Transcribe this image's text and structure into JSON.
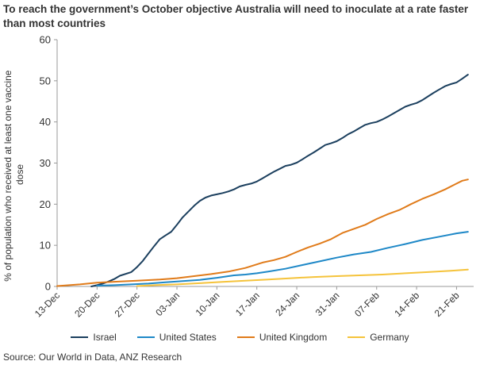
{
  "title": "To reach the government’s October objective Australia will need to inoculate at a rate faster than most countries",
  "source": "Source: Our World in Data, ANZ Research",
  "chart_data": {
    "type": "line",
    "ylabel": "% of population who received at least one vaccine dose",
    "xlabel": "",
    "ylim": [
      0,
      60
    ],
    "yticks": [
      0,
      10,
      20,
      30,
      40,
      50,
      60
    ],
    "xlim": [
      "2020-12-13",
      "2021-02-24"
    ],
    "xticks": [
      "13-Dec",
      "20-Dec",
      "27-Dec",
      "03-Jan",
      "10-Jan",
      "17-Jan",
      "24-Jan",
      "31-Jan",
      "07-Feb",
      "14-Feb",
      "21-Feb"
    ],
    "xtick_dates": [
      "2020-12-13",
      "2020-12-20",
      "2020-12-27",
      "2021-01-03",
      "2021-01-10",
      "2021-01-17",
      "2021-01-24",
      "2021-01-31",
      "2021-02-07",
      "2021-02-14",
      "2021-02-21"
    ],
    "grid": false,
    "legend": "bottom",
    "series": [
      {
        "name": "Israel",
        "color": "#1b3f5e",
        "points": [
          [
            "2020-12-19",
            0
          ],
          [
            "2020-12-20",
            0.3
          ],
          [
            "2020-12-21",
            0.7
          ],
          [
            "2020-12-22",
            1.2
          ],
          [
            "2020-12-23",
            1.8
          ],
          [
            "2020-12-24",
            2.6
          ],
          [
            "2020-12-26",
            3.5
          ],
          [
            "2020-12-27",
            4.7
          ],
          [
            "2020-12-28",
            6.2
          ],
          [
            "2020-12-29",
            8.0
          ],
          [
            "2020-12-30",
            9.8
          ],
          [
            "2020-12-31",
            11.5
          ],
          [
            "2021-01-01",
            12.4
          ],
          [
            "2021-01-02",
            13.3
          ],
          [
            "2021-01-03",
            15.0
          ],
          [
            "2021-01-04",
            16.8
          ],
          [
            "2021-01-05",
            18.2
          ],
          [
            "2021-01-06",
            19.6
          ],
          [
            "2021-01-07",
            20.8
          ],
          [
            "2021-01-08",
            21.6
          ],
          [
            "2021-01-09",
            22.1
          ],
          [
            "2021-01-10",
            22.4
          ],
          [
            "2021-01-11",
            22.7
          ],
          [
            "2021-01-12",
            23.1
          ],
          [
            "2021-01-13",
            23.6
          ],
          [
            "2021-01-14",
            24.3
          ],
          [
            "2021-01-15",
            24.7
          ],
          [
            "2021-01-16",
            25.0
          ],
          [
            "2021-01-17",
            25.5
          ],
          [
            "2021-01-18",
            26.3
          ],
          [
            "2021-01-19",
            27.1
          ],
          [
            "2021-01-20",
            27.9
          ],
          [
            "2021-01-21",
            28.6
          ],
          [
            "2021-01-22",
            29.3
          ],
          [
            "2021-01-23",
            29.6
          ],
          [
            "2021-01-24",
            30.1
          ],
          [
            "2021-01-25",
            30.9
          ],
          [
            "2021-01-26",
            31.8
          ],
          [
            "2021-01-27",
            32.6
          ],
          [
            "2021-01-28",
            33.5
          ],
          [
            "2021-01-29",
            34.4
          ],
          [
            "2021-01-30",
            34.8
          ],
          [
            "2021-01-31",
            35.3
          ],
          [
            "2021-02-01",
            36.1
          ],
          [
            "2021-02-02",
            37.0
          ],
          [
            "2021-02-03",
            37.7
          ],
          [
            "2021-02-04",
            38.5
          ],
          [
            "2021-02-05",
            39.3
          ],
          [
            "2021-02-06",
            39.7
          ],
          [
            "2021-02-07",
            40.0
          ],
          [
            "2021-02-08",
            40.6
          ],
          [
            "2021-02-09",
            41.3
          ],
          [
            "2021-02-10",
            42.1
          ],
          [
            "2021-02-11",
            42.9
          ],
          [
            "2021-02-12",
            43.7
          ],
          [
            "2021-02-13",
            44.2
          ],
          [
            "2021-02-14",
            44.6
          ],
          [
            "2021-02-15",
            45.3
          ],
          [
            "2021-02-16",
            46.2
          ],
          [
            "2021-02-17",
            47.1
          ],
          [
            "2021-02-18",
            47.9
          ],
          [
            "2021-02-19",
            48.7
          ],
          [
            "2021-02-20",
            49.2
          ],
          [
            "2021-02-21",
            49.6
          ],
          [
            "2021-02-22",
            50.5
          ],
          [
            "2021-02-23",
            51.5
          ]
        ]
      },
      {
        "name": "United States",
        "color": "#1e88c7",
        "points": [
          [
            "2020-12-20",
            0.2
          ],
          [
            "2020-12-23",
            0.3
          ],
          [
            "2020-12-26",
            0.5
          ],
          [
            "2020-12-29",
            0.7
          ],
          [
            "2021-01-01",
            1.0
          ],
          [
            "2021-01-04",
            1.3
          ],
          [
            "2021-01-07",
            1.6
          ],
          [
            "2021-01-10",
            2.1
          ],
          [
            "2021-01-13",
            2.7
          ],
          [
            "2021-01-15",
            2.9
          ],
          [
            "2021-01-17",
            3.2
          ],
          [
            "2021-01-19",
            3.6
          ],
          [
            "2021-01-22",
            4.3
          ],
          [
            "2021-01-25",
            5.2
          ],
          [
            "2021-01-28",
            6.1
          ],
          [
            "2021-01-31",
            7.0
          ],
          [
            "2021-02-03",
            7.8
          ],
          [
            "2021-02-06",
            8.4
          ],
          [
            "2021-02-09",
            9.4
          ],
          [
            "2021-02-12",
            10.3
          ],
          [
            "2021-02-15",
            11.3
          ],
          [
            "2021-02-18",
            12.1
          ],
          [
            "2021-02-21",
            12.9
          ],
          [
            "2021-02-23",
            13.3
          ]
        ]
      },
      {
        "name": "United Kingdom",
        "color": "#e07b1a",
        "points": [
          [
            "2020-12-13",
            0.1
          ],
          [
            "2020-12-17",
            0.5
          ],
          [
            "2020-12-20",
            0.9
          ],
          [
            "2020-12-24",
            1.2
          ],
          [
            "2020-12-27",
            1.4
          ],
          [
            "2020-12-31",
            1.7
          ],
          [
            "2021-01-03",
            2.0
          ],
          [
            "2021-01-06",
            2.5
          ],
          [
            "2021-01-09",
            3.0
          ],
          [
            "2021-01-12",
            3.6
          ],
          [
            "2021-01-15",
            4.5
          ],
          [
            "2021-01-18",
            5.8
          ],
          [
            "2021-01-20",
            6.4
          ],
          [
            "2021-01-22",
            7.2
          ],
          [
            "2021-01-24",
            8.4
          ],
          [
            "2021-01-26",
            9.5
          ],
          [
            "2021-01-28",
            10.4
          ],
          [
            "2021-01-30",
            11.5
          ],
          [
            "2021-02-01",
            13.0
          ],
          [
            "2021-02-03",
            14.0
          ],
          [
            "2021-02-05",
            15.0
          ],
          [
            "2021-02-07",
            16.4
          ],
          [
            "2021-02-09",
            17.6
          ],
          [
            "2021-02-11",
            18.6
          ],
          [
            "2021-02-13",
            20.0
          ],
          [
            "2021-02-15",
            21.3
          ],
          [
            "2021-02-17",
            22.4
          ],
          [
            "2021-02-19",
            23.6
          ],
          [
            "2021-02-21",
            25.0
          ],
          [
            "2021-02-22",
            25.7
          ],
          [
            "2021-02-23",
            26.0
          ]
        ]
      },
      {
        "name": "Germany",
        "color": "#f5c33b",
        "points": [
          [
            "2020-12-27",
            0.1
          ],
          [
            "2020-12-30",
            0.3
          ],
          [
            "2021-01-03",
            0.5
          ],
          [
            "2021-01-07",
            0.8
          ],
          [
            "2021-01-11",
            1.1
          ],
          [
            "2021-01-15",
            1.4
          ],
          [
            "2021-01-19",
            1.7
          ],
          [
            "2021-01-23",
            2.0
          ],
          [
            "2021-01-27",
            2.3
          ],
          [
            "2021-01-31",
            2.5
          ],
          [
            "2021-02-04",
            2.7
          ],
          [
            "2021-02-08",
            2.9
          ],
          [
            "2021-02-12",
            3.2
          ],
          [
            "2021-02-16",
            3.5
          ],
          [
            "2021-02-20",
            3.8
          ],
          [
            "2021-02-23",
            4.1
          ]
        ]
      }
    ]
  }
}
